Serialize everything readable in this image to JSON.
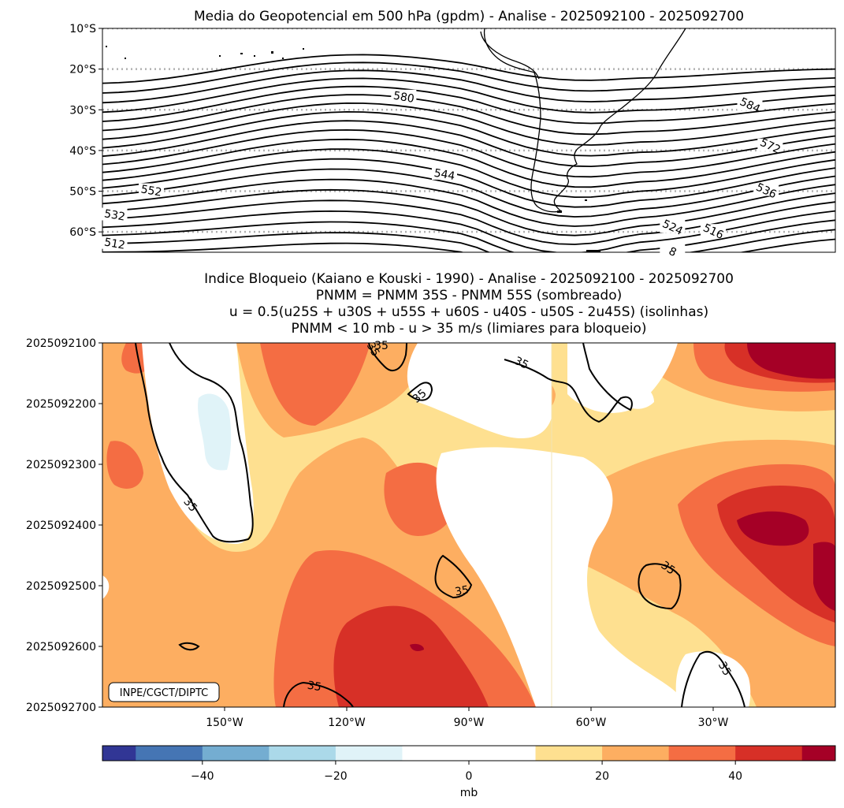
{
  "chart_data": [
    {
      "type": "contour",
      "title": "Media do Geopotencial em 500 hPa (gpdm) - Analise - 2025092100 - 2025092700",
      "units": "gpdm",
      "ylim": [
        -65,
        -10
      ],
      "xlim": [
        -180,
        0
      ],
      "lat_tick_labels": [
        "10°S",
        "20°S",
        "30°S",
        "40°S",
        "50°S",
        "60°S"
      ],
      "lat_ticks": [
        -10,
        -20,
        -30,
        -40,
        -50,
        -60
      ],
      "gridlines": "dotted at 10°S..60°S",
      "contour_labels": [
        {
          "text": "580",
          "lon": -106,
          "lat": -27
        },
        {
          "text": "584",
          "lon": -21,
          "lat": -29
        },
        {
          "text": "572",
          "lon": -16,
          "lat": -39
        },
        {
          "text": "544",
          "lon": -96,
          "lat": -46
        },
        {
          "text": "552",
          "lon": -168,
          "lat": -50
        },
        {
          "text": "536",
          "lon": -17,
          "lat": -50
        },
        {
          "text": "532",
          "lon": -177,
          "lat": -56
        },
        {
          "text": "524",
          "lon": -40,
          "lat": -59
        },
        {
          "text": "516",
          "lon": -30,
          "lat": -60
        },
        {
          "text": "512",
          "lon": -177,
          "lat": -63
        },
        {
          "text": "8",
          "lon": -40,
          "lat": -65
        }
      ],
      "contour_levels_gpdm": [
        588,
        584,
        580,
        576,
        572,
        568,
        564,
        560,
        556,
        552,
        548,
        544,
        540,
        536,
        532,
        528,
        524,
        520,
        516,
        512,
        508
      ]
    },
    {
      "type": "heatmap",
      "title": "Indice Bloqueio (Kaiano e Kouski - 1990) - Analise - 2025092100 - 2025092700",
      "title_lines": [
        "Indice Bloqueio (Kaiano e Kouski - 1990) - Analise - 2025092100 - 2025092700",
        "PNMM = PNMM 35S - PNMM 55S (sombreado)",
        "u = 0.5(u25S + u30S + u55S + u60S - u40S - u50S - 2u45S) (isolinhas)",
        "PNMM < 10 mb - u > 35 m/s (limiares para bloqueio)"
      ],
      "x_tick_labels": [
        "150°W",
        "120°W",
        "90°W",
        "60°W",
        "30°W"
      ],
      "x_ticks": [
        -150,
        -120,
        -90,
        -60,
        -30
      ],
      "xlim": [
        -180,
        0
      ],
      "y_tick_labels": [
        "2025092100",
        "2025092200",
        "2025092300",
        "2025092400",
        "2025092500",
        "2025092600",
        "2025092700"
      ],
      "isoline_value": 35,
      "isoline_labels": [
        "35",
        "35",
        "35",
        "35",
        "35",
        "35",
        "35",
        "35",
        "35"
      ],
      "annotation": "INPE/CGCT/DIPTC",
      "colorbar": {
        "label": "mb",
        "range": [
          -55,
          55
        ],
        "boundaries": [
          -55,
          -50,
          -40,
          -30,
          -20,
          -10,
          10,
          20,
          30,
          40,
          50,
          55
        ],
        "tick_values": [
          -40,
          -20,
          0,
          20,
          40
        ],
        "tick_labels": [
          "−40",
          "−20",
          "0",
          "20",
          "40"
        ],
        "colors": [
          "#313695",
          "#4575b4",
          "#74add1",
          "#abd9e9",
          "#e0f3f8",
          "#ffffff",
          "#fee090",
          "#fdae61",
          "#f46d43",
          "#d73027",
          "#a50026"
        ]
      }
    }
  ]
}
